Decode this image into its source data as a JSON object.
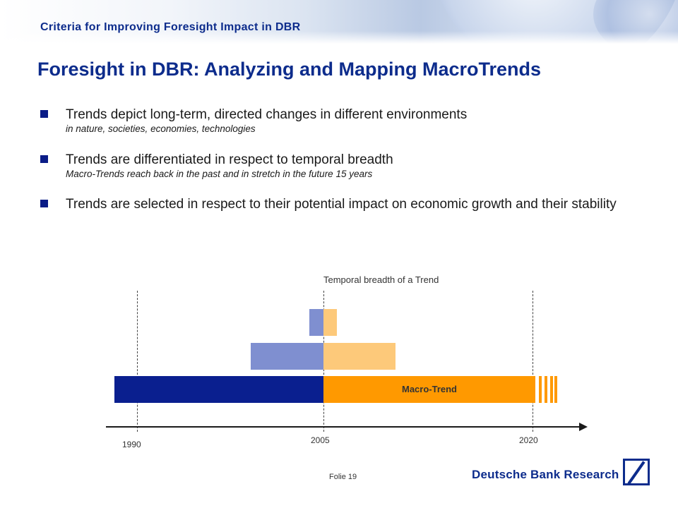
{
  "header": {
    "section_title": "Criteria for Improving Foresight Impact in DBR"
  },
  "slide": {
    "title": "Foresight in DBR: Analyzing and Mapping MacroTrends",
    "bullets": [
      {
        "main": "Trends depict long-term, directed changes in different environments",
        "sub": "in nature, societies, economies, technologies"
      },
      {
        "main": "Trends are differentiated in respect to temporal breadth",
        "sub": "Macro-Trends reach back in the past and in stretch in the future 15 years"
      },
      {
        "main": "Trends are selected in respect to their potential impact on economic growth and their stability",
        "sub": ""
      }
    ]
  },
  "diagram": {
    "caption": "Temporal breadth of a Trend",
    "macro_label": "Macro-Trend",
    "years": [
      "1990",
      "2005",
      "2020"
    ],
    "colors": {
      "past_dark": "#0a1f8f",
      "past_light": "#7f8fd0",
      "future_dark": "#ff9900",
      "future_light": "#fdc97a"
    }
  },
  "footer": {
    "page_label": "Folie 19",
    "brand": "Deutsche Bank Research",
    "brand_icon": "deutsche-bank-slash-square-logo"
  }
}
